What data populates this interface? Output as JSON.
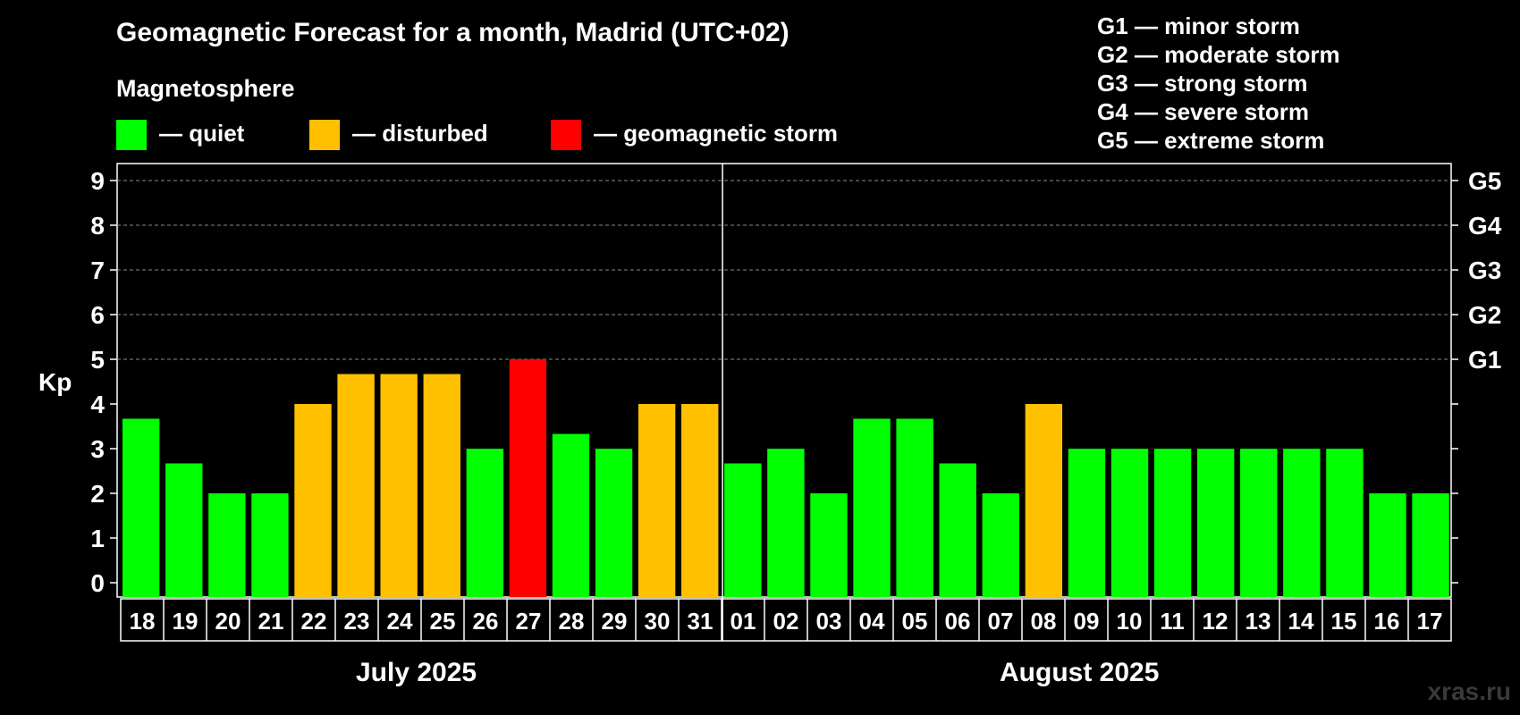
{
  "header": {
    "title": "Geomagnetic Forecast for a month, Madrid (UTC+02)",
    "magnetosphere_label": "Magnetosphere"
  },
  "legend": {
    "quiet": {
      "label": "— quiet",
      "color": "#00ff00"
    },
    "disturbed": {
      "label": "— disturbed",
      "color": "#ffc000"
    },
    "storm": {
      "label": "— geomagnetic storm",
      "color": "#ff0000"
    }
  },
  "storm_scale": [
    "G1 — minor storm",
    "G2 — moderate storm",
    "G3 — strong storm",
    "G4 — severe storm",
    "G5 — extreme storm"
  ],
  "months": {
    "first": "July 2025",
    "second": "August 2025"
  },
  "watermark": "xras.ru",
  "chart_data": {
    "type": "bar",
    "ylabel": "Kp",
    "ylim": [
      0,
      9
    ],
    "y_ticks": [
      "0",
      "1",
      "2",
      "3",
      "4",
      "5",
      "6",
      "7",
      "8",
      "9"
    ],
    "right_ticks": [
      {
        "kp": 5,
        "label": "G1"
      },
      {
        "kp": 6,
        "label": "G2"
      },
      {
        "kp": 7,
        "label": "G3"
      },
      {
        "kp": 8,
        "label": "G4"
      },
      {
        "kp": 9,
        "label": "G5"
      }
    ],
    "grid": "dashed horizontal at 5-9",
    "categories": [
      "18",
      "19",
      "20",
      "21",
      "22",
      "23",
      "24",
      "25",
      "26",
      "27",
      "28",
      "29",
      "30",
      "31",
      "01",
      "02",
      "03",
      "04",
      "05",
      "06",
      "07",
      "08",
      "09",
      "10",
      "11",
      "12",
      "13",
      "14",
      "15",
      "16",
      "17"
    ],
    "values": [
      3.67,
      2.67,
      2.0,
      2.0,
      4.0,
      4.67,
      4.67,
      4.67,
      3.0,
      5.0,
      3.33,
      3.0,
      4.0,
      4.0,
      2.67,
      3.0,
      2.0,
      3.67,
      3.67,
      2.67,
      2.0,
      4.0,
      3.0,
      3.0,
      3.0,
      3.0,
      3.0,
      3.0,
      3.0,
      2.0,
      2.0
    ],
    "status": [
      "quiet",
      "quiet",
      "quiet",
      "quiet",
      "disturbed",
      "disturbed",
      "disturbed",
      "disturbed",
      "quiet",
      "storm",
      "quiet",
      "quiet",
      "disturbed",
      "disturbed",
      "quiet",
      "quiet",
      "quiet",
      "quiet",
      "quiet",
      "quiet",
      "quiet",
      "disturbed",
      "quiet",
      "quiet",
      "quiet",
      "quiet",
      "quiet",
      "quiet",
      "quiet",
      "quiet",
      "quiet"
    ],
    "month_split_index": 14
  }
}
